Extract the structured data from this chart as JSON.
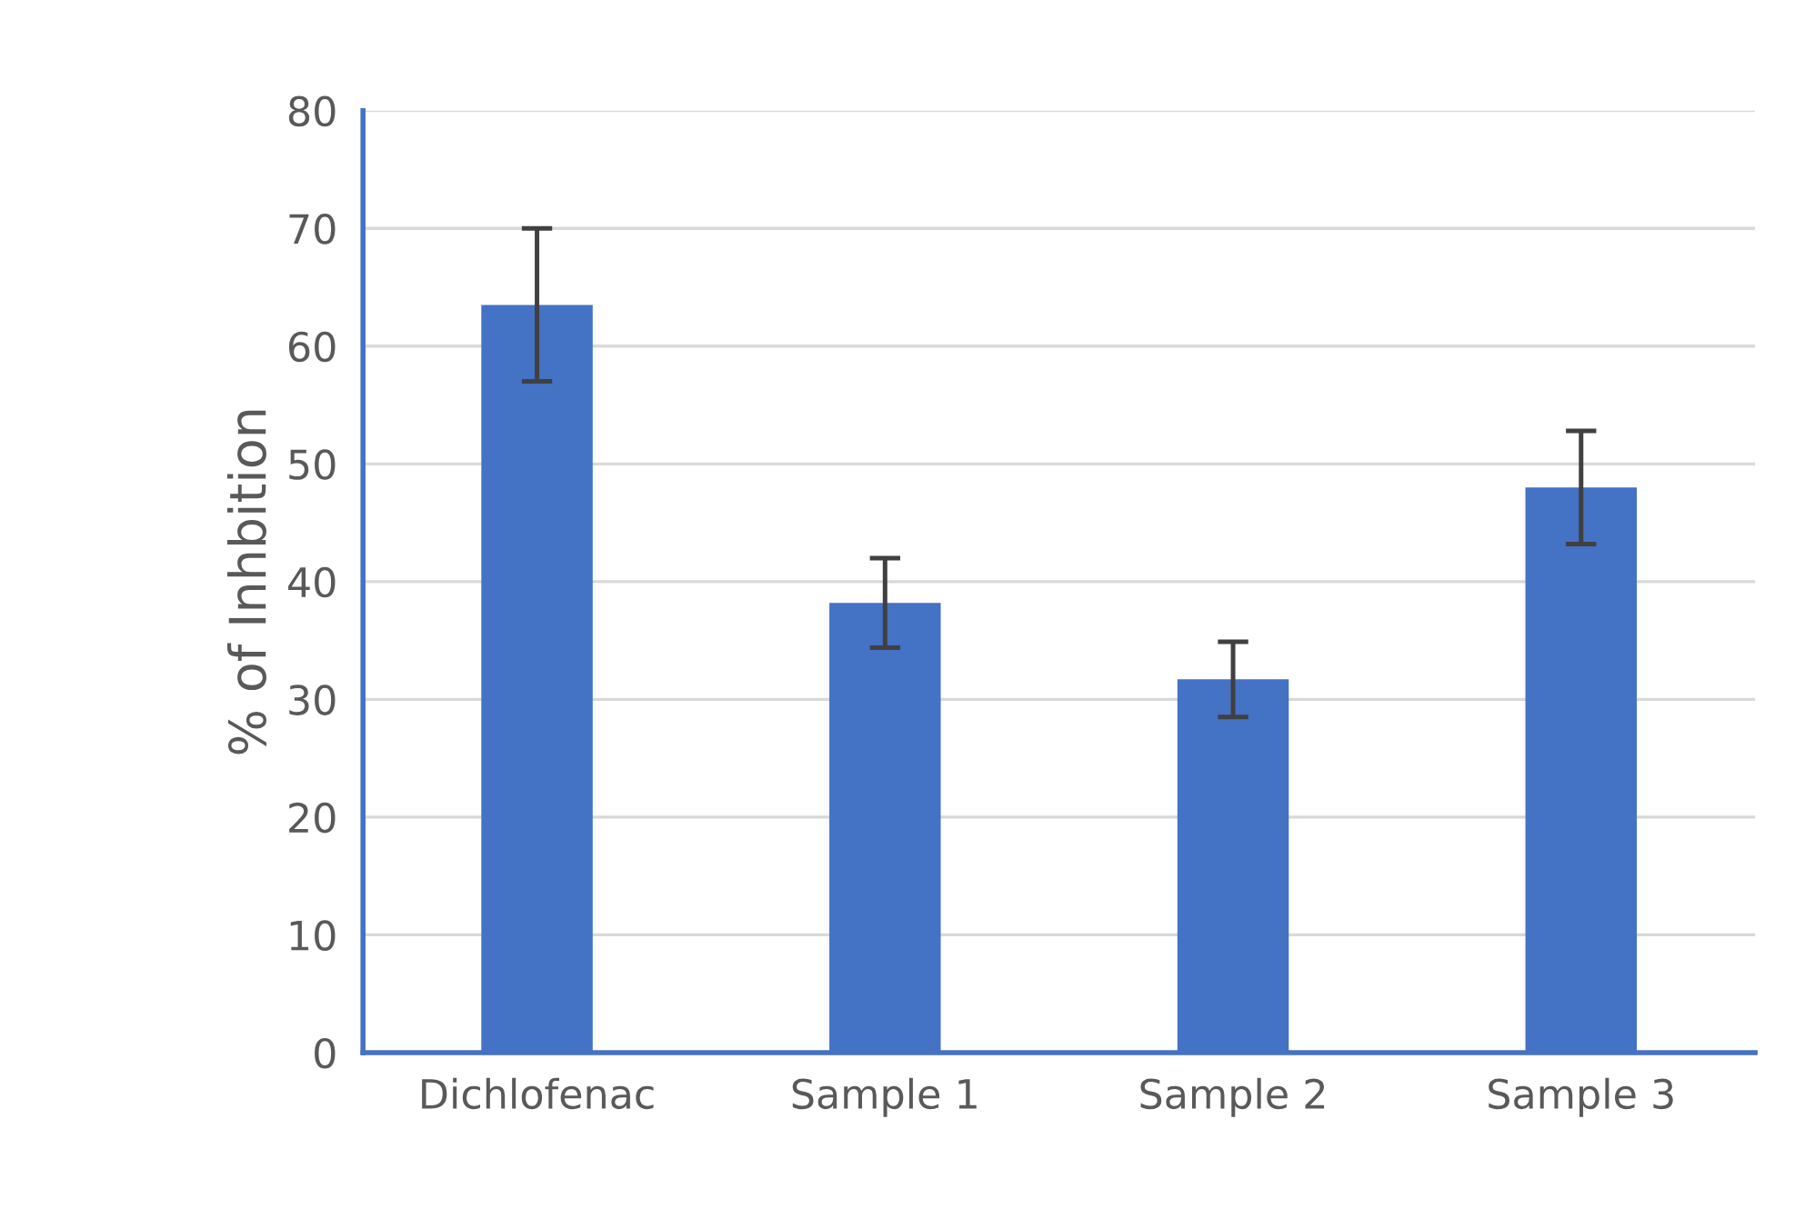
{
  "chart_data": {
    "type": "bar",
    "ylabel": "% of Inhbition",
    "categories": [
      "Dichlofenac",
      "Sample 1",
      "Sample 2",
      "Sample 3"
    ],
    "values": [
      63.5,
      38.2,
      31.7,
      48.0
    ],
    "errors": [
      6.5,
      3.8,
      3.2,
      4.8
    ],
    "color": "#4472c4",
    "ylim": [
      0,
      80
    ],
    "yticks": [
      0,
      10,
      20,
      30,
      40,
      50,
      60,
      70,
      80
    ],
    "grid": "y"
  }
}
